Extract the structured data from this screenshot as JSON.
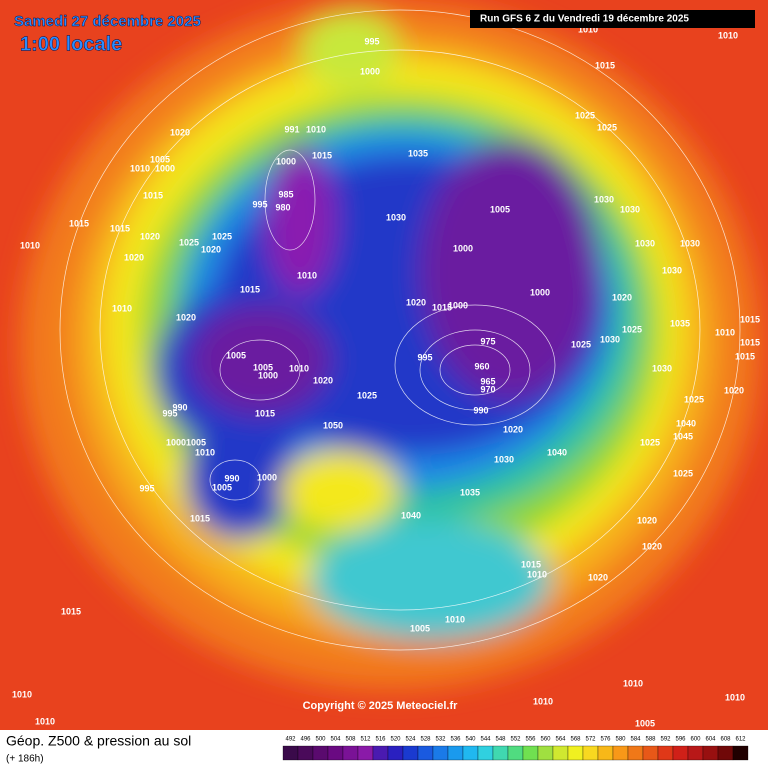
{
  "header": {
    "date": "Samedi 27 décembre 2025",
    "time": "1:00 locale",
    "run": "Run GFS 6 Z du Vendredi 19 décembre 2025"
  },
  "footer": {
    "title": "Géop. Z500 & pression au sol",
    "lead": "(+ 186h)",
    "copyright": "Copyright © 2025 Meteociel.fr"
  },
  "scale_labels": [
    492,
    496,
    500,
    504,
    508,
    512,
    516,
    520,
    524,
    528,
    532,
    536,
    540,
    544,
    548,
    552,
    556,
    560,
    564,
    568,
    572,
    576,
    580,
    584,
    588,
    592,
    596,
    600,
    604,
    608,
    612
  ],
  "isobar_labels": [
    995,
    1000,
    1010,
    1010,
    1015,
    1020,
    1005,
    1010,
    1000,
    1015,
    1010,
    1015,
    1015,
    1020,
    1025,
    1025,
    1020,
    1020,
    1010,
    1020,
    1015,
    991,
    1010,
    1015,
    1000,
    985,
    995,
    980,
    1010,
    1035,
    1030,
    1025,
    1025,
    1005,
    1000,
    1000,
    1030,
    1030,
    1030,
    1030,
    1030,
    1020,
    1035,
    1025,
    1030,
    1025,
    1010,
    1015,
    1015,
    1015,
    1020,
    1030,
    1025,
    1020,
    1015,
    1000,
    975,
    995,
    960,
    965,
    970,
    990,
    1005,
    1005,
    1000,
    1010,
    1020,
    1025,
    990,
    995,
    1015,
    1050,
    1000,
    1005,
    1010,
    990,
    1000,
    1005,
    995,
    1015,
    1020,
    1030,
    1040,
    1035,
    1040,
    1025,
    1045,
    1040,
    1025,
    1020,
    1020,
    1015,
    1010,
    1020,
    1015,
    1005,
    1010,
    1010,
    1010,
    1010,
    1010,
    1010,
    1005
  ]
}
